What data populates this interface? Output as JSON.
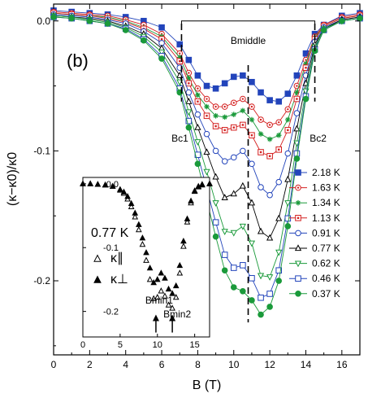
{
  "chart_data": {
    "type": "scatter",
    "panel_label": "(b)",
    "xlabel": "B (T)",
    "ylabel": "(κ−κ0)/κ0",
    "xlim": [
      0,
      17
    ],
    "ylim": [
      -0.257,
      0.013
    ],
    "xticks": [
      "0",
      "2",
      "4",
      "6",
      "8",
      "10",
      "12",
      "14",
      "16"
    ],
    "yticks": [
      "0.0",
      "-0.1",
      "-0.2"
    ],
    "grid": false,
    "legend_position": "right",
    "annotations": {
      "b_middle": "Bmiddle",
      "b_c1": "Bc1",
      "b_c2": "Bc2"
    },
    "marker_lines_x": [
      7.1,
      10.8,
      14.5
    ],
    "series": [
      {
        "name": "2.18 K",
        "color": "#2244bb",
        "marker": "square-filled",
        "x": [
          0,
          1,
          2,
          3,
          4,
          5,
          6,
          7,
          7.5,
          8,
          8.5,
          9,
          9.5,
          10,
          10.5,
          11,
          11.5,
          12,
          12.5,
          13,
          13.5,
          14,
          14.5,
          15,
          16,
          17
        ],
        "y": [
          0.008,
          0.007,
          0.006,
          0.005,
          0.003,
          0.0,
          -0.005,
          -0.018,
          -0.03,
          -0.042,
          -0.05,
          -0.052,
          -0.048,
          -0.043,
          -0.042,
          -0.047,
          -0.055,
          -0.061,
          -0.062,
          -0.056,
          -0.042,
          -0.025,
          -0.01,
          -0.003,
          0.004,
          0.006
        ]
      },
      {
        "name": "1.63 K",
        "color": "#d42020",
        "marker": "circle-dot",
        "x": [
          0,
          1,
          2,
          3,
          4,
          5,
          6,
          7,
          7.5,
          8,
          8.5,
          9,
          9.5,
          10,
          10.5,
          11,
          11.5,
          12,
          12.5,
          13,
          13.5,
          14,
          14.5,
          15,
          16,
          17
        ],
        "y": [
          0.007,
          0.006,
          0.005,
          0.004,
          0.001,
          -0.003,
          -0.01,
          -0.025,
          -0.04,
          -0.052,
          -0.06,
          -0.066,
          -0.066,
          -0.063,
          -0.06,
          -0.066,
          -0.076,
          -0.08,
          -0.078,
          -0.068,
          -0.05,
          -0.03,
          -0.012,
          -0.003,
          0.003,
          0.005
        ]
      },
      {
        "name": "1.34 K",
        "color": "#1a9a3a",
        "marker": "star",
        "x": [
          0,
          1,
          2,
          3,
          4,
          5,
          6,
          7,
          7.5,
          8,
          8.5,
          9,
          9.5,
          10,
          10.5,
          11,
          11.5,
          12,
          12.5,
          13,
          13.5,
          14,
          14.5,
          15,
          16,
          17
        ],
        "y": [
          0.006,
          0.005,
          0.004,
          0.003,
          0.0,
          -0.005,
          -0.012,
          -0.028,
          -0.044,
          -0.057,
          -0.066,
          -0.073,
          -0.074,
          -0.072,
          -0.069,
          -0.076,
          -0.087,
          -0.091,
          -0.088,
          -0.076,
          -0.055,
          -0.033,
          -0.013,
          -0.004,
          0.002,
          0.004
        ]
      },
      {
        "name": "1.13 K",
        "color": "#d42020",
        "marker": "square-dot",
        "x": [
          0,
          1,
          2,
          3,
          4,
          5,
          6,
          7,
          7.5,
          8,
          8.5,
          9,
          9.5,
          10,
          10.5,
          11,
          11.5,
          12,
          12.5,
          13,
          13.5,
          14,
          14.5,
          15,
          16,
          17
        ],
        "y": [
          0.006,
          0.005,
          0.004,
          0.002,
          -0.001,
          -0.006,
          -0.014,
          -0.031,
          -0.048,
          -0.062,
          -0.073,
          -0.081,
          -0.084,
          -0.082,
          -0.08,
          -0.088,
          -0.101,
          -0.104,
          -0.099,
          -0.084,
          -0.06,
          -0.036,
          -0.014,
          -0.004,
          0.002,
          0.004
        ]
      },
      {
        "name": "0.91 K",
        "color": "#2244bb",
        "marker": "circle-open",
        "x": [
          0,
          1,
          2,
          3,
          4,
          5,
          6,
          7,
          7.5,
          8,
          8.5,
          9,
          9.5,
          10,
          10.5,
          11,
          11.5,
          12,
          12.5,
          13,
          13.5,
          14,
          14.5,
          15,
          16,
          17
        ],
        "y": [
          0.005,
          0.004,
          0.003,
          0.001,
          -0.002,
          -0.008,
          -0.017,
          -0.036,
          -0.055,
          -0.072,
          -0.087,
          -0.1,
          -0.108,
          -0.105,
          -0.1,
          -0.11,
          -0.128,
          -0.134,
          -0.124,
          -0.102,
          -0.071,
          -0.042,
          -0.016,
          -0.005,
          0.001,
          0.003
        ]
      },
      {
        "name": "0.77 K",
        "color": "#000000",
        "marker": "triangle-open",
        "x": [
          0,
          1,
          2,
          3,
          4,
          5,
          6,
          7,
          7.5,
          8,
          8.5,
          9,
          9.5,
          10,
          10.5,
          11,
          11.5,
          12,
          12.5,
          13,
          13.5,
          14,
          14.5,
          15,
          16,
          17
        ],
        "y": [
          0.004,
          0.003,
          0.002,
          0.0,
          -0.004,
          -0.01,
          -0.021,
          -0.042,
          -0.062,
          -0.082,
          -0.101,
          -0.12,
          -0.136,
          -0.133,
          -0.127,
          -0.14,
          -0.162,
          -0.167,
          -0.152,
          -0.122,
          -0.083,
          -0.048,
          -0.018,
          -0.006,
          0.001,
          0.003
        ]
      },
      {
        "name": "0.62 K",
        "color": "#1a9a3a",
        "marker": "triangle-down-open",
        "x": [
          0,
          1,
          2,
          3,
          4,
          5,
          6,
          7,
          7.5,
          8,
          8.5,
          9,
          9.5,
          10,
          10.5,
          11,
          11.5,
          12,
          12.5,
          13,
          13.5,
          14,
          14.5,
          15,
          16,
          17
        ],
        "y": [
          0.004,
          0.003,
          0.001,
          -0.001,
          -0.005,
          -0.012,
          -0.024,
          -0.047,
          -0.07,
          -0.093,
          -0.116,
          -0.14,
          -0.162,
          -0.163,
          -0.158,
          -0.171,
          -0.196,
          -0.197,
          -0.178,
          -0.14,
          -0.094,
          -0.054,
          -0.02,
          -0.006,
          0.0,
          0.002
        ]
      },
      {
        "name": "0.46 K",
        "color": "#2244bb",
        "marker": "square-open",
        "x": [
          0,
          1,
          2,
          3,
          4,
          5,
          6,
          7,
          7.5,
          8,
          8.5,
          9,
          9.5,
          10,
          10.5,
          11,
          11.5,
          12,
          12.5,
          13,
          13.5,
          14,
          14.5,
          15,
          16,
          17
        ],
        "y": [
          0.003,
          0.002,
          0.0,
          -0.002,
          -0.006,
          -0.014,
          -0.027,
          -0.052,
          -0.077,
          -0.103,
          -0.129,
          -0.155,
          -0.18,
          -0.19,
          -0.188,
          -0.198,
          -0.213,
          -0.21,
          -0.192,
          -0.152,
          -0.102,
          -0.058,
          -0.022,
          -0.007,
          0.0,
          0.002
        ]
      },
      {
        "name": "0.37 K",
        "color": "#1a9a3a",
        "marker": "circle-filled",
        "x": [
          0,
          1,
          2,
          3,
          4,
          5,
          6,
          7,
          7.5,
          8,
          8.5,
          9,
          9.5,
          10,
          10.5,
          11,
          11.5,
          12,
          12.5,
          13,
          13.5,
          14,
          14.5,
          15,
          16,
          17
        ],
        "y": [
          0.003,
          0.002,
          0.0,
          -0.002,
          -0.007,
          -0.015,
          -0.029,
          -0.055,
          -0.082,
          -0.11,
          -0.138,
          -0.166,
          -0.192,
          -0.205,
          -0.208,
          -0.215,
          -0.226,
          -0.22,
          -0.2,
          -0.158,
          -0.106,
          -0.06,
          -0.023,
          -0.007,
          0.0,
          0.002
        ]
      }
    ],
    "inset": {
      "temperature_label": "0.77 K",
      "xlim": [
        0,
        17
      ],
      "ylim": [
        -0.24,
        0.01
      ],
      "xticks": [
        "0",
        "5",
        "10",
        "15"
      ],
      "yticks": [
        "0.0",
        "-0.1",
        "-0.2"
      ],
      "annotations": {
        "b_min1": "Bmin1",
        "b_min2": "Bmin2"
      },
      "arrows_x": [
        9.8,
        12.0
      ],
      "series": [
        {
          "name": "κ∥",
          "marker": "triangle-open",
          "x": [
            0,
            1,
            2,
            3,
            4,
            5,
            5.5,
            6,
            6.5,
            7,
            7.5,
            8,
            8.5,
            9,
            9.5,
            10,
            10.5,
            11,
            11.5,
            12,
            12.5,
            13,
            13.5,
            14,
            14.5,
            15,
            15.5,
            16,
            17
          ],
          "y": [
            0.0,
            0.0,
            -0.001,
            -0.002,
            -0.004,
            -0.01,
            -0.015,
            -0.024,
            -0.036,
            -0.052,
            -0.072,
            -0.095,
            -0.12,
            -0.15,
            -0.18,
            -0.178,
            -0.168,
            -0.176,
            -0.19,
            -0.195,
            -0.178,
            -0.14,
            -0.098,
            -0.06,
            -0.03,
            -0.012,
            -0.005,
            -0.002,
            0.0
          ]
        },
        {
          "name": "κ⊥",
          "marker": "triangle-filled",
          "x": [
            0,
            1,
            2,
            3,
            4,
            5,
            5.5,
            6,
            6.5,
            7,
            7.5,
            8,
            8.5,
            9,
            9.5,
            10,
            10.5,
            11,
            11.5,
            12,
            12.5,
            13,
            13.5,
            14,
            14.5,
            15,
            15.5,
            16,
            17
          ],
          "y": [
            0.0,
            0.0,
            -0.001,
            -0.002,
            -0.004,
            -0.009,
            -0.013,
            -0.02,
            -0.031,
            -0.046,
            -0.064,
            -0.085,
            -0.108,
            -0.132,
            -0.155,
            -0.15,
            -0.14,
            -0.148,
            -0.165,
            -0.172,
            -0.16,
            -0.128,
            -0.09,
            -0.055,
            -0.027,
            -0.011,
            -0.004,
            -0.001,
            0.0
          ]
        }
      ]
    }
  }
}
